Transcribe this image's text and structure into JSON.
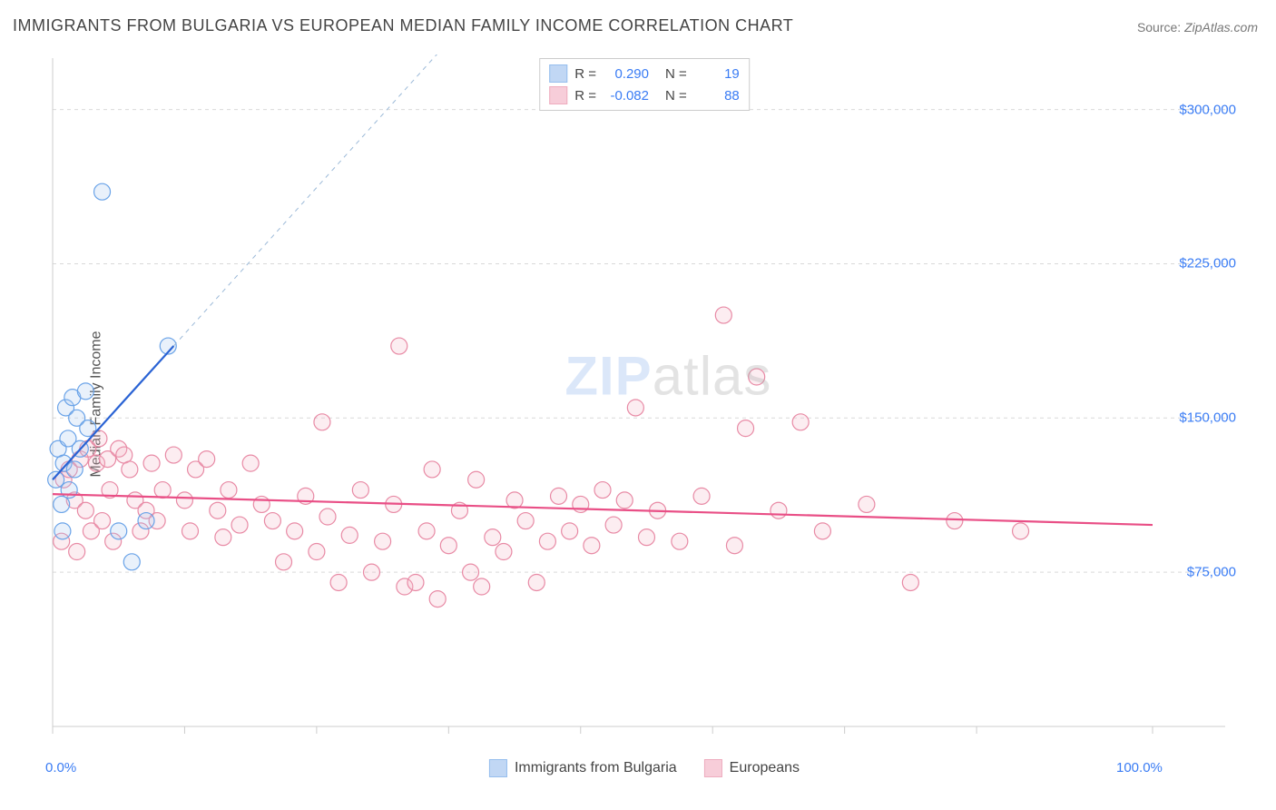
{
  "title": "IMMIGRANTS FROM BULGARIA VS EUROPEAN MEDIAN FAMILY INCOME CORRELATION CHART",
  "source_label": "Source:",
  "source_value": "ZipAtlas.com",
  "watermark_zip": "ZIP",
  "watermark_rest": "atlas",
  "chart": {
    "type": "scatter",
    "background_color": "#ffffff",
    "grid_color": "#d9d9d9",
    "grid_dash": "4,4",
    "axis_color": "#cccccc",
    "tick_label_color": "#3a7cf4",
    "ylabel": "Median Family Income",
    "ylabel_fontsize": 16,
    "ylabel_color": "#555555",
    "xlim": [
      0,
      100
    ],
    "ylim": [
      0,
      325000
    ],
    "yticks": [
      75000,
      150000,
      225000,
      300000
    ],
    "ytick_labels": [
      "$75,000",
      "$150,000",
      "$225,000",
      "$300,000"
    ],
    "xticks": [
      0,
      12,
      24,
      36,
      48,
      60,
      72,
      84,
      100
    ],
    "xtick_labels_shown": {
      "0": "0.0%",
      "100": "100.0%"
    },
    "marker_radius": 9,
    "marker_stroke_width": 1.2,
    "marker_fill_opacity": 0.25,
    "series": [
      {
        "name": "Immigrants from Bulgaria",
        "color_stroke": "#6aa3e8",
        "color_fill": "#a7c7f0",
        "r_value": "0.290",
        "n_value": "19",
        "trend": {
          "x1": 0,
          "y1": 120000,
          "x2": 11,
          "y2": 185000,
          "color": "#2a63d4",
          "width": 2.2
        },
        "extrapolation": {
          "x1": 11,
          "y1": 185000,
          "x2": 38,
          "y2": 345000,
          "color": "#9bb9d8",
          "width": 1,
          "dash": "5,5"
        },
        "points": [
          [
            0.3,
            120000
          ],
          [
            0.5,
            135000
          ],
          [
            0.8,
            108000
          ],
          [
            0.9,
            95000
          ],
          [
            1.0,
            128000
          ],
          [
            1.2,
            155000
          ],
          [
            1.4,
            140000
          ],
          [
            1.5,
            115000
          ],
          [
            1.8,
            160000
          ],
          [
            2.0,
            125000
          ],
          [
            2.2,
            150000
          ],
          [
            2.5,
            135000
          ],
          [
            3.0,
            163000
          ],
          [
            3.2,
            145000
          ],
          [
            4.5,
            260000
          ],
          [
            6.0,
            95000
          ],
          [
            7.2,
            80000
          ],
          [
            8.5,
            100000
          ],
          [
            10.5,
            185000
          ]
        ]
      },
      {
        "name": "Europeans",
        "color_stroke": "#e88aa5",
        "color_fill": "#f4b9c9",
        "r_value": "-0.082",
        "n_value": "88",
        "trend": {
          "x1": 0,
          "y1": 113000,
          "x2": 100,
          "y2": 98000,
          "color": "#e94f86",
          "width": 2.2
        },
        "points": [
          [
            0.8,
            90000
          ],
          [
            1.0,
            120000
          ],
          [
            1.5,
            125000
          ],
          [
            2.0,
            110000
          ],
          [
            2.2,
            85000
          ],
          [
            2.5,
            130000
          ],
          [
            3.0,
            105000
          ],
          [
            3.2,
            135000
          ],
          [
            3.5,
            95000
          ],
          [
            4.0,
            128000
          ],
          [
            4.2,
            140000
          ],
          [
            4.5,
            100000
          ],
          [
            5.0,
            130000
          ],
          [
            5.2,
            115000
          ],
          [
            5.5,
            90000
          ],
          [
            6.0,
            135000
          ],
          [
            6.5,
            132000
          ],
          [
            7.0,
            125000
          ],
          [
            7.5,
            110000
          ],
          [
            8.0,
            95000
          ],
          [
            8.5,
            105000
          ],
          [
            9.0,
            128000
          ],
          [
            9.5,
            100000
          ],
          [
            10.0,
            115000
          ],
          [
            11.0,
            132000
          ],
          [
            12.0,
            110000
          ],
          [
            12.5,
            95000
          ],
          [
            13.0,
            125000
          ],
          [
            14.0,
            130000
          ],
          [
            15.0,
            105000
          ],
          [
            15.5,
            92000
          ],
          [
            16.0,
            115000
          ],
          [
            17.0,
            98000
          ],
          [
            18.0,
            128000
          ],
          [
            19.0,
            108000
          ],
          [
            20.0,
            100000
          ],
          [
            21.0,
            80000
          ],
          [
            22.0,
            95000
          ],
          [
            23.0,
            112000
          ],
          [
            24.0,
            85000
          ],
          [
            24.5,
            148000
          ],
          [
            25.0,
            102000
          ],
          [
            26.0,
            70000
          ],
          [
            27.0,
            93000
          ],
          [
            28.0,
            115000
          ],
          [
            29.0,
            75000
          ],
          [
            30.0,
            90000
          ],
          [
            31.0,
            108000
          ],
          [
            31.5,
            185000
          ],
          [
            32.0,
            68000
          ],
          [
            33.0,
            70000
          ],
          [
            34.0,
            95000
          ],
          [
            34.5,
            125000
          ],
          [
            35.0,
            62000
          ],
          [
            36.0,
            88000
          ],
          [
            37.0,
            105000
          ],
          [
            38.0,
            75000
          ],
          [
            38.5,
            120000
          ],
          [
            39.0,
            68000
          ],
          [
            40.0,
            92000
          ],
          [
            41.0,
            85000
          ],
          [
            42.0,
            110000
          ],
          [
            43.0,
            100000
          ],
          [
            44.0,
            70000
          ],
          [
            45.0,
            90000
          ],
          [
            46.0,
            112000
          ],
          [
            47.0,
            95000
          ],
          [
            48.0,
            108000
          ],
          [
            49.0,
            88000
          ],
          [
            50.0,
            115000
          ],
          [
            51.0,
            98000
          ],
          [
            52.0,
            110000
          ],
          [
            53.0,
            155000
          ],
          [
            54.0,
            92000
          ],
          [
            55.0,
            105000
          ],
          [
            57.0,
            90000
          ],
          [
            59.0,
            112000
          ],
          [
            61.0,
            200000
          ],
          [
            62.0,
            88000
          ],
          [
            63.0,
            145000
          ],
          [
            64.0,
            170000
          ],
          [
            66.0,
            105000
          ],
          [
            68.0,
            148000
          ],
          [
            70.0,
            95000
          ],
          [
            74.0,
            108000
          ],
          [
            78.0,
            70000
          ],
          [
            82.0,
            100000
          ],
          [
            88.0,
            95000
          ]
        ]
      }
    ]
  },
  "legend_top": {
    "r_label": "R =",
    "n_label": "N ="
  },
  "legend_bottom": [
    {
      "label": "Immigrants from Bulgaria",
      "fill": "#a7c7f0",
      "stroke": "#6aa3e8"
    },
    {
      "label": "Europeans",
      "fill": "#f4b9c9",
      "stroke": "#e88aa5"
    }
  ]
}
